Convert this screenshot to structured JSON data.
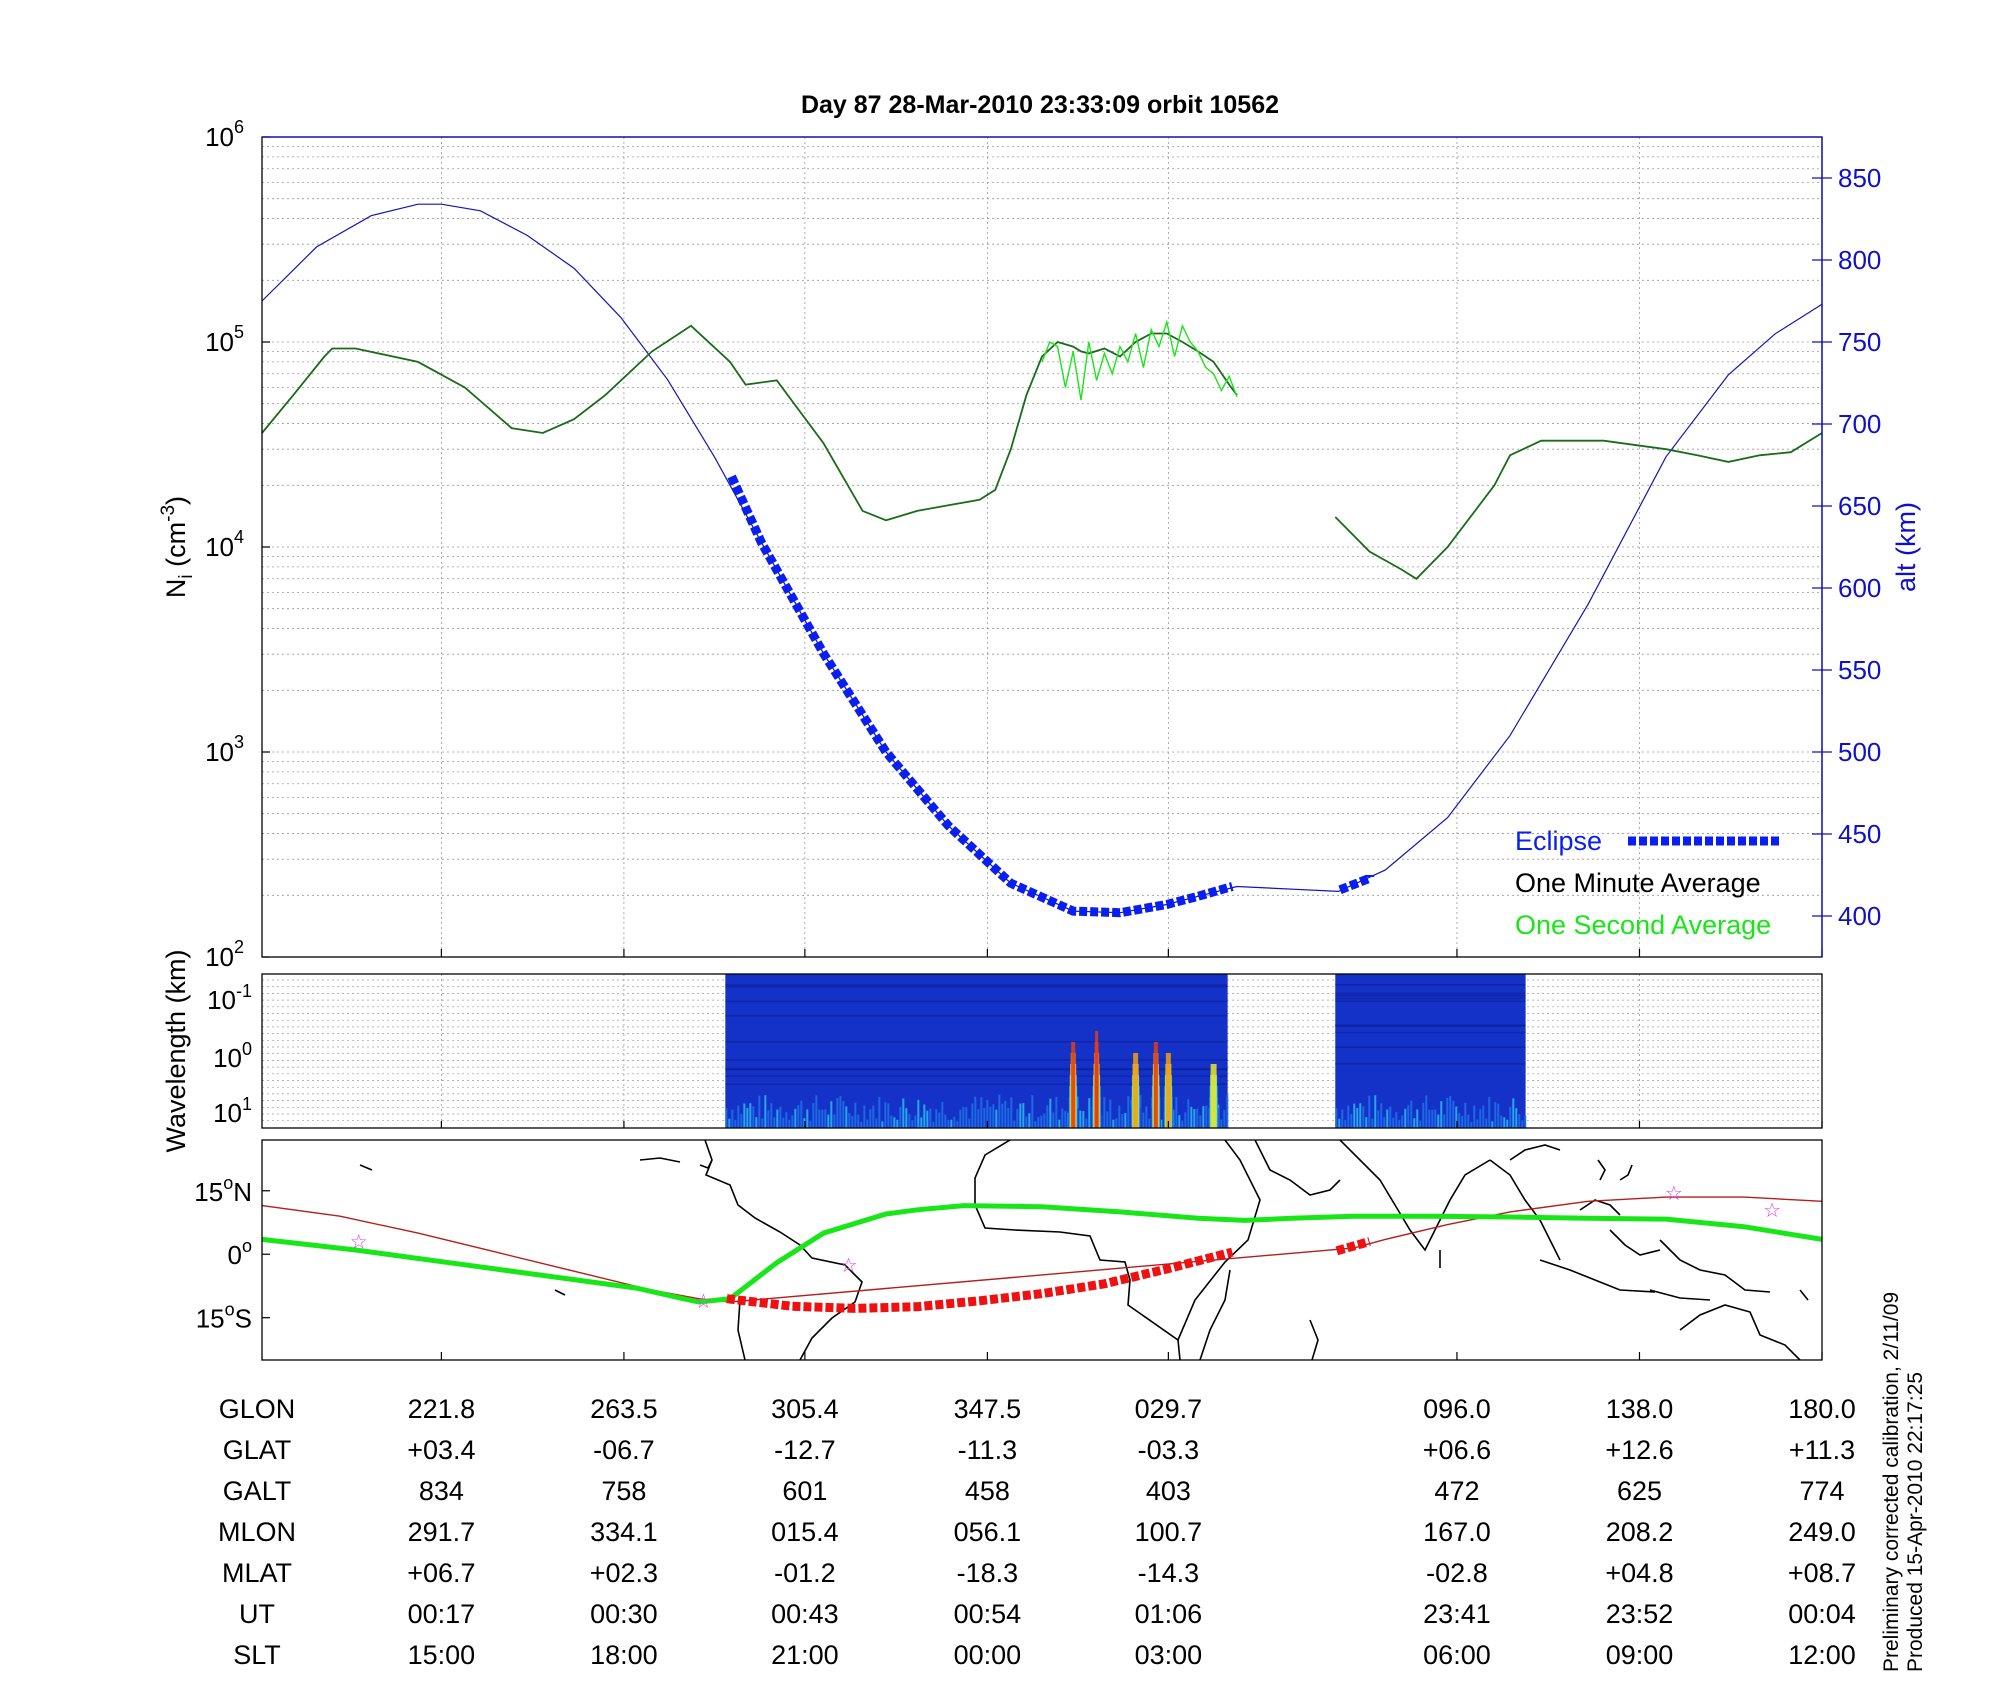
{
  "title": "Day 87  28-Mar-2010 23:33:09   orbit 10562",
  "colors": {
    "one_minute": "#1a6b1a",
    "one_second": "#19e619",
    "altitude": "#1414b4",
    "eclipse": "#0a1ef0",
    "map_track": "#19e619",
    "map_eclipse": "#ee1111",
    "map_mag_equator": "#b41e1e",
    "stars": "#e040e0"
  },
  "chart_data": [
    {
      "type": "line",
      "name": "density-altitude",
      "ylabel": "N",
      "ylabel_sub": "i",
      "ylabel_units": " (cm",
      "ylabel_sup": "-3",
      "ylabel_close": ")",
      "y_scale": "log",
      "ylim": [
        100,
        1000000
      ],
      "y_ticks": [
        {
          "base": "10",
          "exp": "2",
          "value": 100
        },
        {
          "base": "10",
          "exp": "3",
          "value": 1000
        },
        {
          "base": "10",
          "exp": "4",
          "value": 10000
        },
        {
          "base": "10",
          "exp": "5",
          "value": 100000
        },
        {
          "base": "10",
          "exp": "6",
          "value": 1000000
        }
      ],
      "y2label": "alt (km)",
      "y2lim": [
        375,
        875
      ],
      "y2_ticks": [
        "400",
        "450",
        "500",
        "550",
        "600",
        "650",
        "700",
        "750",
        "800",
        "850"
      ],
      "x_ticks": [
        "221.8",
        "263.5",
        "305.4",
        "347.5",
        "029.7",
        "096.0",
        "138.0",
        "180.0"
      ],
      "grid": true,
      "legend_position": "bottom-right",
      "legend": [
        {
          "label": "Eclipse",
          "key": "eclipse"
        },
        {
          "label": "One Minute Average",
          "key": "one_minute"
        },
        {
          "label": "One Second Average",
          "key": "one_second"
        }
      ],
      "series": [
        {
          "name": "One Minute Average",
          "key": "one_minute",
          "axis": "left",
          "segments": [
            {
              "x": [
                0.0,
                0.02,
                0.04,
                0.045,
                0.06,
                0.1,
                0.13,
                0.16,
                0.18,
                0.2,
                0.22,
                0.25,
                0.275,
                0.3,
                0.31,
                0.33,
                0.36,
                0.385,
                0.4,
                0.42,
                0.44,
                0.46,
                0.47,
                0.48,
                0.49,
                0.5,
                0.51,
                0.52,
                0.525,
                0.53,
                0.53,
                0.54,
                0.55,
                0.56,
                0.57,
                0.58,
                0.59,
                0.6,
                0.61,
                0.62,
                0.625
              ],
              "y": [
                36000,
                55000,
                85000,
                93000,
                93000,
                80000,
                60000,
                38000,
                36000,
                42000,
                55000,
                90000,
                120000,
                80000,
                62000,
                65000,
                32000,
                15000,
                13500,
                15000,
                16000,
                17000,
                19000,
                30000,
                55000,
                85000,
                100000,
                95000,
                90000,
                88000,
                88000,
                93000,
                85000,
                100000,
                110000,
                110000,
                100000,
                90000,
                80000,
                62000,
                55000
              ]
            },
            {
              "x": [
                0.688,
                0.71,
                0.73,
                0.74,
                0.76,
                0.79,
                0.8,
                0.82,
                0.86,
                0.9,
                0.92,
                0.94,
                0.96,
                0.98,
                1.0
              ],
              "y": [
                14000,
                9500,
                7800,
                7000,
                10000,
                20000,
                28000,
                33000,
                33000,
                30000,
                28000,
                26000,
                28000,
                29000,
                36000
              ]
            }
          ]
        },
        {
          "name": "One Second Average",
          "key": "one_second",
          "axis": "left",
          "x": [
            0.5,
            0.505,
            0.51,
            0.515,
            0.52,
            0.525,
            0.53,
            0.535,
            0.54,
            0.545,
            0.55,
            0.555,
            0.56,
            0.565,
            0.57,
            0.575,
            0.58,
            0.585,
            0.59,
            0.595,
            0.6,
            0.605,
            0.61,
            0.615,
            0.62,
            0.625
          ],
          "y": [
            80000,
            100000,
            95000,
            60000,
            90000,
            52000,
            100000,
            65000,
            88000,
            70000,
            95000,
            80000,
            110000,
            75000,
            115000,
            95000,
            125000,
            85000,
            120000,
            100000,
            90000,
            75000,
            70000,
            58000,
            68000,
            54000
          ]
        },
        {
          "name": "alt (km)",
          "key": "altitude",
          "axis": "right",
          "x": [
            0.0,
            0.035,
            0.07,
            0.1,
            0.115,
            0.14,
            0.17,
            0.2,
            0.23,
            0.26,
            0.29,
            0.32,
            0.36,
            0.4,
            0.44,
            0.48,
            0.52,
            0.55,
            0.58,
            0.6,
            0.625,
            0.69,
            0.72,
            0.76,
            0.8,
            0.85,
            0.9,
            0.94,
            0.97,
            1.0
          ],
          "y": [
            775,
            808,
            827,
            834,
            834,
            830,
            815,
            795,
            765,
            727,
            680,
            628,
            560,
            500,
            455,
            420,
            403,
            402,
            407,
            412,
            418,
            415,
            428,
            460,
            510,
            590,
            680,
            730,
            755,
            773
          ]
        },
        {
          "name": "Eclipse",
          "key": "eclipse",
          "axis": "right",
          "dashed": true,
          "segments": [
            {
              "x": [
                0.301,
                0.32,
                0.36,
                0.4,
                0.44,
                0.48,
                0.52,
                0.55,
                0.58,
                0.6,
                0.622
              ],
              "y": [
                668,
                628,
                560,
                500,
                455,
                420,
                403,
                402,
                407,
                412,
                418
              ]
            },
            {
              "x": [
                0.691,
                0.71,
                0.71
              ],
              "y": [
                416,
                423,
                425
              ]
            }
          ]
        }
      ]
    },
    {
      "type": "heatmap",
      "name": "wavelength-spectrogram",
      "ylabel": "Wavelength (km)",
      "y_ticks": [
        {
          "base": "10",
          "exp": "-1"
        },
        {
          "base": "10",
          "exp": "0"
        },
        {
          "base": "10",
          "exp": "1"
        }
      ],
      "data_spans": [
        [
          0.297,
          0.619
        ],
        [
          0.688,
          0.81
        ]
      ],
      "colormap": [
        "#0a1a8c",
        "#1432c8",
        "#1e6ee6",
        "#28b4f0",
        "#64e6b4",
        "#e6e628",
        "#f0a014",
        "#e63c14"
      ],
      "bursts": [
        {
          "x": 0.52,
          "level": 6
        },
        {
          "x": 0.535,
          "level": 7
        },
        {
          "x": 0.56,
          "level": 5
        },
        {
          "x": 0.573,
          "level": 6
        },
        {
          "x": 0.581,
          "level": 5
        },
        {
          "x": 0.61,
          "level": 4
        }
      ]
    },
    {
      "type": "line",
      "name": "ground-track-map",
      "y_ticks": [
        {
          "deg": "15",
          "hemi": "N"
        },
        {
          "deg": "0",
          "hemi": ""
        },
        {
          "deg": "15",
          "hemi": "S"
        }
      ],
      "ylim": [
        -25,
        27
      ],
      "series": [
        {
          "name": "track",
          "key": "map_track",
          "x": [
            0.0,
            0.06,
            0.12,
            0.18,
            0.24,
            0.27,
            0.28,
            0.3,
            0.33,
            0.36,
            0.4,
            0.42,
            0.45,
            0.5,
            0.55,
            0.6,
            0.63,
            0.66,
            0.7,
            0.75,
            0.8,
            0.85,
            0.9,
            0.95,
            1.0
          ],
          "y": [
            3.5,
            1.0,
            -2.0,
            -5.0,
            -8.0,
            -10.5,
            -11.3,
            -10.5,
            -2.0,
            5.0,
            9.5,
            10.5,
            11.5,
            11.2,
            10.0,
            8.5,
            8.0,
            8.5,
            9.0,
            9.0,
            8.8,
            8.5,
            8.3,
            6.5,
            3.5
          ]
        },
        {
          "name": "mag-equator",
          "key": "map_mag_equator",
          "x": [
            0.0,
            0.05,
            0.1,
            0.15,
            0.2,
            0.25,
            0.28,
            0.3,
            0.7,
            0.72,
            0.76,
            0.8,
            0.85,
            0.9,
            0.95,
            1.0
          ],
          "y": [
            11.5,
            9.0,
            5.0,
            0.5,
            -4.0,
            -8.5,
            -10.5,
            -11.3,
            1.5,
            3.5,
            7.0,
            10.0,
            12.5,
            13.5,
            13.5,
            12.5
          ]
        },
        {
          "name": "eclipse-track",
          "key": "map_eclipse",
          "dashed": true,
          "segments": [
            {
              "x": [
                0.298,
                0.34,
                0.38,
                0.42,
                0.46,
                0.5,
                0.54,
                0.58,
                0.622
              ],
              "y": [
                -10.5,
                -12.3,
                -12.8,
                -12.4,
                -11.0,
                -9.3,
                -7.0,
                -3.5,
                0.5
              ]
            },
            {
              "x": [
                0.689,
                0.71
              ],
              "y": [
                0.8,
                3.0
              ]
            }
          ]
        }
      ],
      "stars_x": [
        0.062,
        0.283,
        0.376,
        0.905,
        0.968
      ],
      "stars_y": [
        3.0,
        -11.0,
        -2.5,
        14.5,
        10.5
      ]
    }
  ],
  "table": {
    "columns_x": [
      0.115,
      0.232,
      0.348,
      0.465,
      0.581,
      0.766,
      0.883,
      1.0
    ],
    "rows": [
      {
        "label": "GLON",
        "values": [
          "221.8",
          "263.5",
          "305.4",
          "347.5",
          "029.7",
          "096.0",
          "138.0",
          "180.0"
        ]
      },
      {
        "label": "GLAT",
        "values": [
          "+03.4",
          "-06.7",
          "-12.7",
          "-11.3",
          "-03.3",
          "+06.6",
          "+12.6",
          "+11.3"
        ]
      },
      {
        "label": "GALT",
        "values": [
          "834",
          "758",
          "601",
          "458",
          "403",
          "472",
          "625",
          "774"
        ]
      },
      {
        "label": "MLON",
        "values": [
          "291.7",
          "334.1",
          "015.4",
          "056.1",
          "100.7",
          "167.0",
          "208.2",
          "249.0"
        ]
      },
      {
        "label": "MLAT",
        "values": [
          "+06.7",
          "+02.3",
          "-01.2",
          "-18.3",
          "-14.3",
          "-02.8",
          "+04.8",
          "+08.7"
        ]
      },
      {
        "label": "UT",
        "values": [
          "00:17",
          "00:30",
          "00:43",
          "00:54",
          "01:06",
          "23:41",
          "23:52",
          "00:04"
        ]
      },
      {
        "label": "SLT",
        "values": [
          "15:00",
          "18:00",
          "21:00",
          "00:00",
          "03:00",
          "06:00",
          "09:00",
          "12:00"
        ]
      }
    ]
  },
  "side_note_1": "Preliminary corrected calibration, 2/11/09",
  "side_note_2": "Produced 15-Apr-2010 22:17:25"
}
